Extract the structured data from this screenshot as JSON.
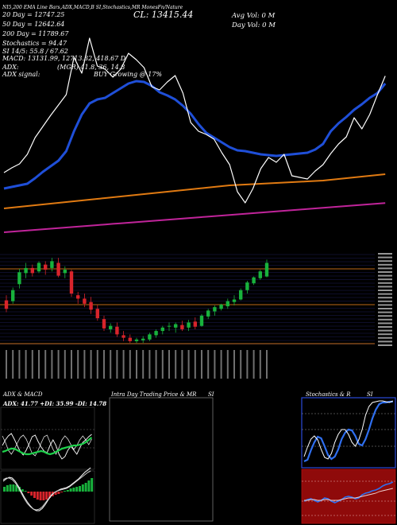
{
  "header": {
    "text": "NI5,200 EMA Line Bars,ADX,MACD,B    SI,Stochastics,MR    MonesFn/Nature     "
  },
  "ma_legend": {
    "ma20": "20  Day = 12747.25",
    "ma50": "50  Day = 12642.64",
    "ma200": "200  Day = 11789.67",
    "stochastics": "Stochastics = 94.47",
    "si": "SI 14/5: 55.8 / 67.62",
    "macd": "MACD: 13131.99, 12713.32, 418.67 D"
  },
  "close_label": "CL: 13415.44",
  "volume": {
    "avg": "Avg Vol: 0   M",
    "day": "Day Vol: 0   M"
  },
  "adx_info": {
    "label": "ADX:",
    "value": "(MGR) 41.8,  36,   14.8",
    "signal_label": "ADX  signal:",
    "signal_value": "BUY Growing @ 17%"
  },
  "panels": {
    "adx_macd_title": "ADX  & MACD",
    "adx_values": "ADX: 41.77 +DI: 35.99 -DI: 14.78",
    "intraday_title": "Intra  Day Trading Price  & MR",
    "si_title": "SI",
    "stoch_title": "Stochastics & R",
    "stoch_si_title": "SI"
  },
  "colors": {
    "ema20": "#1f4fd8",
    "ema200": "#e07a12",
    "ema_pink": "#c0249a",
    "up": "#18b23c",
    "down": "#d8242b",
    "price_line": "#ffffff"
  },
  "chart_data": [
    {
      "type": "line",
      "series": [
        {
          "values": [
            12000,
            12020,
            12040,
            12060,
            12130,
            12210,
            12280,
            12350,
            12470,
            12720,
            12930,
            13070,
            13120,
            13140,
            13200,
            13260,
            13320,
            13350,
            13340,
            13290,
            13210,
            13170,
            13120,
            13040,
            12940,
            12810,
            12700,
            12640,
            12580,
            12520,
            12480,
            12470,
            12450,
            12430,
            12420,
            12410,
            12420,
            12430,
            12440,
            12450,
            12490,
            12560,
            12720,
            12820,
            12900,
            12990,
            13060,
            13140,
            13200,
            13320
          ]
        },
        {
          "values": [
            11750,
            11760,
            11770,
            11780,
            11790,
            11800,
            11810,
            11820,
            11830,
            11840,
            11850,
            11860,
            11870,
            11880,
            11890,
            11900,
            11910,
            11920,
            11930,
            11940,
            11950,
            11960,
            11970,
            11980,
            11990,
            12000,
            12010,
            12020,
            12030,
            12040,
            12045,
            12050,
            12055,
            12060,
            12065,
            12070,
            12075,
            12080,
            12085,
            12090,
            12095,
            12100,
            12110,
            12120,
            12130,
            12140,
            12150,
            12160,
            12170,
            12180
          ]
        },
        {
          "values": [
            11450,
            11458,
            11465,
            11473,
            11480,
            11488,
            11495,
            11503,
            11510,
            11518,
            11525,
            11533,
            11540,
            11548,
            11556,
            11563,
            11570,
            11578,
            11585,
            11593,
            11600,
            11608,
            11615,
            11623,
            11630,
            11638,
            11645,
            11653,
            11660,
            11668,
            11675,
            11683,
            11690,
            11698,
            11705,
            11713,
            11720,
            11728,
            11735,
            11743,
            11750,
            11758,
            11765,
            11773,
            11780,
            11788,
            11795,
            11803,
            11810,
            11818
          ]
        },
        {
          "values": [
            12200,
            12260,
            12310,
            12430,
            12640,
            12780,
            12920,
            13050,
            13180,
            13650,
            13450,
            13890,
            13540,
            13500,
            13400,
            13500,
            13700,
            13620,
            13520,
            13280,
            13240,
            13340,
            13420,
            13200,
            12830,
            12720,
            12680,
            12620,
            12450,
            12300,
            11960,
            11820,
            12000,
            12250,
            12390,
            12330,
            12430,
            12160,
            12140,
            12120,
            12220,
            12300,
            12440,
            12560,
            12650,
            12890,
            12750,
            12930,
            13180,
            13415
          ]
        }
      ]
    },
    {
      "type": "candlestick",
      "ohlc": [
        [
          13060,
          13120,
          12920,
          12960
        ],
        [
          13050,
          13210,
          13020,
          13180
        ],
        [
          13250,
          13430,
          13200,
          13390
        ],
        [
          13380,
          13500,
          13320,
          13440
        ],
        [
          13440,
          13480,
          13340,
          13380
        ],
        [
          13400,
          13520,
          13380,
          13500
        ],
        [
          13480,
          13520,
          13360,
          13420
        ],
        [
          13440,
          13560,
          13400,
          13520
        ],
        [
          13500,
          13560,
          13330,
          13350
        ],
        [
          13380,
          13460,
          13320,
          13420
        ],
        [
          13400,
          13420,
          13100,
          13140
        ],
        [
          13120,
          13160,
          13020,
          13080
        ],
        [
          13080,
          13140,
          12980,
          13020
        ],
        [
          13040,
          13100,
          12900,
          12950
        ],
        [
          12960,
          13010,
          12820,
          12850
        ],
        [
          12840,
          12880,
          12700,
          12730
        ],
        [
          12720,
          12790,
          12680,
          12760
        ],
        [
          12750,
          12800,
          12630,
          12660
        ],
        [
          12650,
          12700,
          12580,
          12620
        ],
        [
          12620,
          12660,
          12560,
          12580
        ],
        [
          12580,
          12620,
          12560,
          12600
        ],
        [
          12590,
          12640,
          12560,
          12610
        ],
        [
          12600,
          12680,
          12580,
          12660
        ],
        [
          12650,
          12720,
          12620,
          12700
        ],
        [
          12700,
          12760,
          12660,
          12740
        ],
        [
          12760,
          12800,
          12700,
          12760
        ],
        [
          12740,
          12800,
          12680,
          12780
        ],
        [
          12770,
          12820,
          12700,
          12720
        ],
        [
          12740,
          12830,
          12700,
          12800
        ],
        [
          12810,
          12860,
          12720,
          12750
        ],
        [
          12760,
          12900,
          12750,
          12880
        ],
        [
          12870,
          12960,
          12840,
          12940
        ],
        [
          12930,
          13000,
          12880,
          12980
        ],
        [
          12960,
          13020,
          12940,
          13010
        ],
        [
          12990,
          13080,
          12960,
          13050
        ],
        [
          13040,
          13120,
          13000,
          13070
        ],
        [
          13070,
          13200,
          13060,
          13180
        ],
        [
          13180,
          13290,
          13140,
          13270
        ],
        [
          13260,
          13340,
          13240,
          13330
        ],
        [
          13320,
          13420,
          13300,
          13400
        ],
        [
          13340,
          13540,
          13330,
          13500
        ]
      ]
    }
  ]
}
